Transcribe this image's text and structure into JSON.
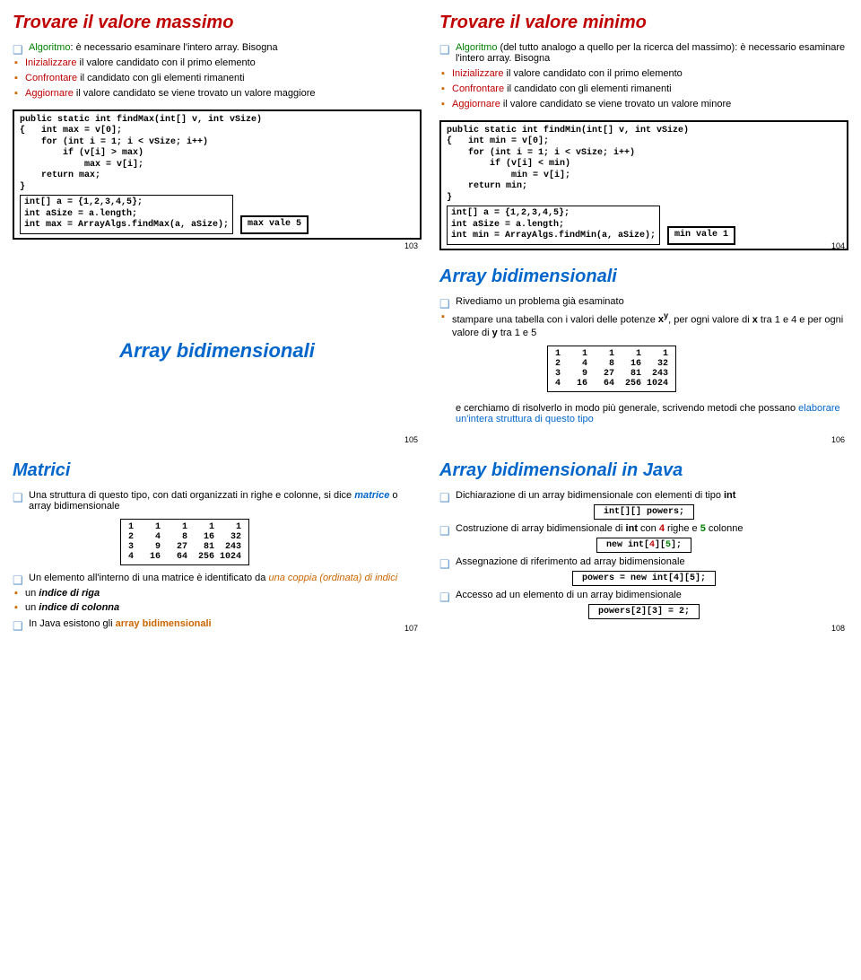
{
  "s1": {
    "title": "Trovare il valore massimo",
    "algo_label": "Algoritmo",
    "algo_rest": ": è necessario esaminare l'intero array. Bisogna",
    "b1a": "Inizializzare",
    "b1b": " il valore candidato con il primo elemento",
    "b2a": "Confrontare",
    "b2b": " il candidato con gli elementi rimanenti",
    "b3a": "Aggiornare",
    "b3b": " il valore candidato se viene trovato un valore maggiore",
    "code_top": "public static int findMax(int[] v, int vSize)\n{   int max = v[0];\n    for (int i = 1; i < vSize; i++)\n        if (v[i] > max)\n            max = v[i];\n    return max;\n}",
    "code_box": "int[] a = {1,2,3,4,5};\nint aSize = a.length;\nint max = ArrayAlgs.findMax(a, aSize);",
    "badge": "max vale 5",
    "page": "103"
  },
  "s2": {
    "title": "Trovare il valore minimo",
    "algo_label": "Algoritmo",
    "algo_rest": " (del tutto analogo a quello per la ricerca del massimo): è necessario esaminare l'intero array. Bisogna",
    "b1a": "Inizializzare",
    "b1b": " il valore candidato con il primo elemento",
    "b2a": "Confrontare",
    "b2b": " il candidato con gli elementi rimanenti",
    "b3a": "Aggiornare",
    "b3b": " il valore candidato se viene trovato un valore minore",
    "code_top": "public static int findMin(int[] v, int vSize)\n{   int min = v[0];\n    for (int i = 1; i < vSize; i++)\n        if (v[i] < min)\n            min = v[i];\n    return min;\n}",
    "code_box": "int[] a = {1,2,3,4,5};\nint aSize = a.length;\nint min = ArrayAlgs.findMin(a, aSize);",
    "badge": "min vale 1",
    "page": "104"
  },
  "s3": {
    "title": "Array bidimensionali",
    "page": "105"
  },
  "s4": {
    "title": "Array bidimensionali",
    "p1": "Rivediamo un problema già esaminato",
    "p1s": "stampare una tabella con i valori delle potenze ",
    "xv": "x",
    "exp": "y",
    "p1s2": ", per ogni valore di ",
    "xb": "x",
    "p1s3": " tra 1 e 4 e per ogni valore di ",
    "yb": "y",
    "p1s4": " tra 1 e 5",
    "table": "1    1    1    1    1\n2    4    8   16   32\n3    9   27   81  243\n4   16   64  256 1024",
    "p2": "e cerchiamo di risolverlo in modo più generale, scrivendo metodi che possano ",
    "p2b": "elaborare un'intera struttura di questo tipo",
    "page": "106"
  },
  "s5": {
    "title": "Matrici",
    "p1": "Una struttura di questo tipo, con dati organizzati in righe e colonne, si dice ",
    "p1b": "matrice",
    "p1c": " o array bidimensionale",
    "table": "1    1    1    1    1\n2    4    8   16   32\n3    9   27   81  243\n4   16   64  256 1024",
    "p2": "Un elemento all'interno di una matrice è identificato da ",
    "p2b": "una coppia (ordinata) di indici",
    "p2s1": "un ",
    "p2s1b": "indice di riga",
    "p2s2": "un ",
    "p2s2b": "indice di colonna",
    "p3": "In Java esistono gli ",
    "p3b": "array bidimensionali",
    "page": "107"
  },
  "s6": {
    "title": "Array bidimensionali in Java",
    "p1": "Dichiarazione di un array bidimensionale con elementi di tipo ",
    "p1b": "int",
    "c1": "int[][] powers;",
    "p2": "Costruzione di array bidimensionale di ",
    "p2b": "int",
    "p2c": " con ",
    "p2d": "4",
    "p2e": " righe e ",
    "p2f": "5",
    "p2g": " colonne",
    "c2a": "new int[",
    "c2b": "4",
    "c2c": "][",
    "c2d": "5",
    "c2e": "];",
    "p3": "Assegnazione di riferimento ad array bidimensionale",
    "c3": "powers = new int[4][5];",
    "p4": "Accesso ad un elemento di un array bidimensionale",
    "c4": "powers[2][3] = 2;",
    "page": "108"
  }
}
